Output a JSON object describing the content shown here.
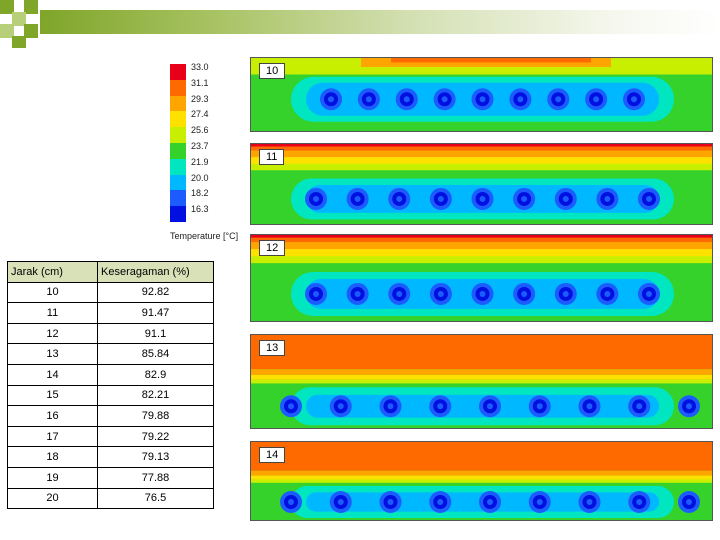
{
  "legend": {
    "ticks": [
      "33.0",
      "31.1",
      "29.3",
      "27.4",
      "25.6",
      "23.7",
      "21.9",
      "20.0",
      "18.2",
      "16.3"
    ],
    "colors": [
      "#e8001a",
      "#ff6a00",
      "#ffa500",
      "#ffe100",
      "#c8ef00",
      "#34d22b",
      "#00e6c0",
      "#00b8ff",
      "#1c5cff",
      "#0010e0"
    ],
    "title": "Temperature [°C]"
  },
  "panels": [
    {
      "label": "10",
      "stripe": "none",
      "band": "cyan",
      "circles": 9
    },
    {
      "label": "11",
      "stripe": "orange",
      "band": "cyan",
      "circles": 9
    },
    {
      "label": "12",
      "stripe": "orange",
      "band": "cyan",
      "circles": 9
    },
    {
      "label": "13",
      "stripe": "orange",
      "band": "green",
      "circles": 9
    },
    {
      "label": "14",
      "stripe": "orange",
      "band": "green",
      "circles": 9
    }
  ],
  "table": {
    "headers": [
      "Jarak (cm)",
      "Keseragaman (%)"
    ],
    "rows": [
      [
        "10",
        "92.82"
      ],
      [
        "11",
        "91.47"
      ],
      [
        "12",
        "91.1"
      ],
      [
        "13",
        "85.84"
      ],
      [
        "14",
        "82.9"
      ],
      [
        "15",
        "82.21"
      ],
      [
        "16",
        "79.88"
      ],
      [
        "17",
        "79.22"
      ],
      [
        "18",
        "79.13"
      ],
      [
        "19",
        "77.88"
      ],
      [
        "20",
        "76.5"
      ]
    ]
  },
  "colors": {
    "accent": "#7fa529",
    "header_bg": "#d9e1b8"
  }
}
